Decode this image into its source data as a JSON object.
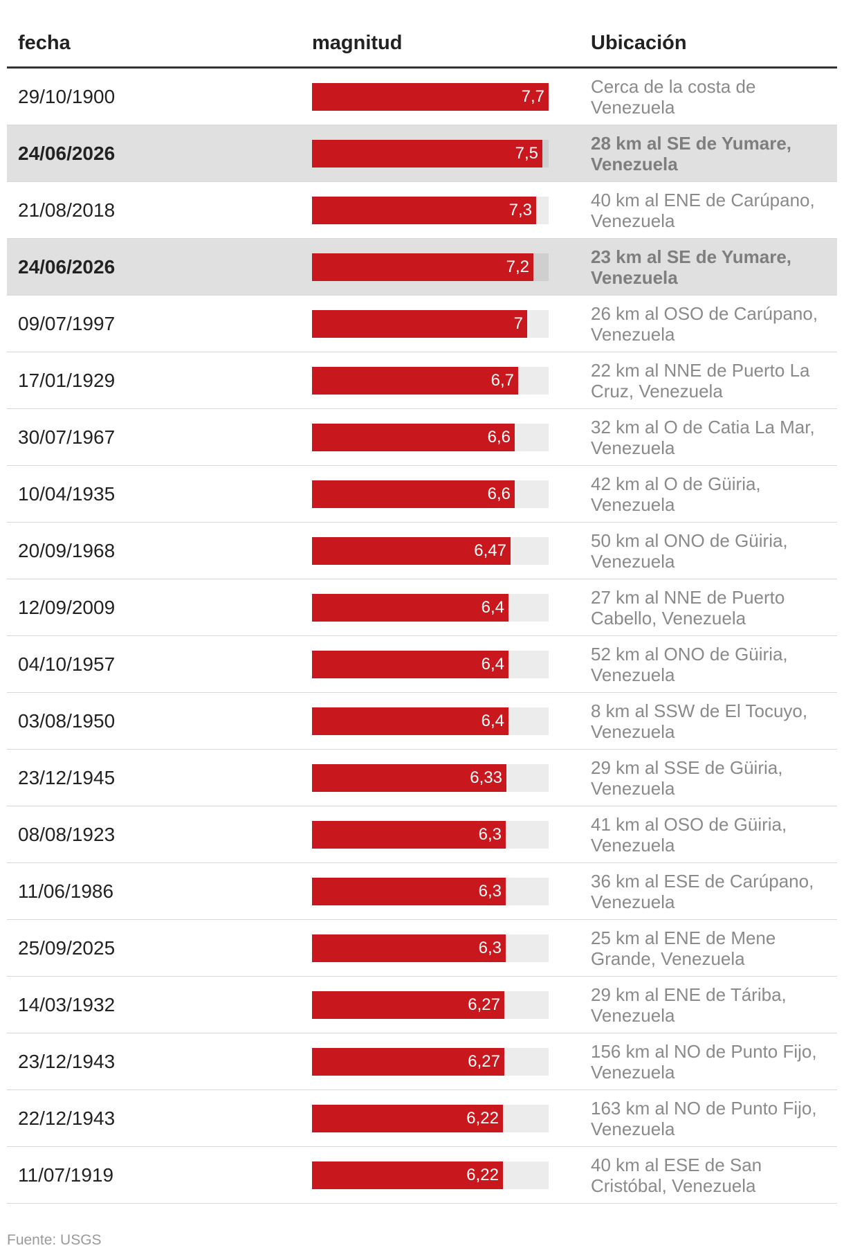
{
  "headers": {
    "fecha": "fecha",
    "magnitud": "magnitud",
    "ubicacion": "Ubicación"
  },
  "source": "Fuente: USGS",
  "colors": {
    "bar": "#c8181d",
    "track": "#ececec",
    "highlight_row": "#e0e0e0"
  },
  "chart_data": {
    "type": "bar",
    "orientation": "horizontal",
    "xlim": [
      0,
      7.7
    ],
    "grid": false,
    "categories": [
      "29/10/1900",
      "24/06/2026",
      "21/08/2018",
      "24/06/2026",
      "09/07/1997",
      "17/01/1929",
      "30/07/1967",
      "10/04/1935",
      "20/09/1968",
      "12/09/2009",
      "04/10/1957",
      "03/08/1950",
      "23/12/1945",
      "08/08/1923",
      "11/06/1986",
      "25/09/2025",
      "14/03/1932",
      "23/12/1943",
      "22/12/1943",
      "11/07/1919"
    ],
    "values": [
      7.7,
      7.5,
      7.3,
      7.2,
      7,
      6.7,
      6.6,
      6.6,
      6.47,
      6.4,
      6.4,
      6.4,
      6.33,
      6.3,
      6.3,
      6.3,
      6.27,
      6.27,
      6.22,
      6.22
    ],
    "value_labels": [
      "7,7",
      "7,5",
      "7,3",
      "7,2",
      "7",
      "6,7",
      "6,6",
      "6,6",
      "6,47",
      "6,4",
      "6,4",
      "6,4",
      "6,33",
      "6,3",
      "6,3",
      "6,3",
      "6,27",
      "6,27",
      "6,22",
      "6,22"
    ],
    "locations": [
      "Cerca de la costa de Venezuela",
      "28 km al SE de Yumare, Venezuela",
      "40 km al ENE de Carúpano, Venezuela",
      "23 km al SE de Yumare, Venezuela",
      "26 km al OSO de Carúpano, Venezuela",
      "22 km al NNE de Puerto La Cruz, Venezuela",
      "32 km al O de Catia La Mar, Venezuela",
      "42 km al O de Güiria, Venezuela",
      "50 km al ONO de Güiria, Venezuela",
      "27 km al NNE de Puerto Cabello, Venezuela",
      "52 km al ONO de Güiria, Venezuela",
      "8 km al SSW de El Tocuyo, Venezuela",
      "29 km al SSE de Güiria, Venezuela",
      "41 km al OSO de Güiria, Venezuela",
      "36 km al ESE de Carúpano, Venezuela",
      "25 km al ENE de Mene Grande, Venezuela",
      "29 km al ENE de Táriba, Venezuela",
      "156 km al NO de Punto Fijo, Venezuela",
      "163 km al NO de Punto Fijo, Venezuela",
      "40 km al ESE de San Cristóbal, Venezuela"
    ],
    "highlighted": [
      false,
      true,
      false,
      true,
      false,
      false,
      false,
      false,
      false,
      false,
      false,
      false,
      false,
      false,
      false,
      false,
      false,
      false,
      false,
      false
    ]
  }
}
